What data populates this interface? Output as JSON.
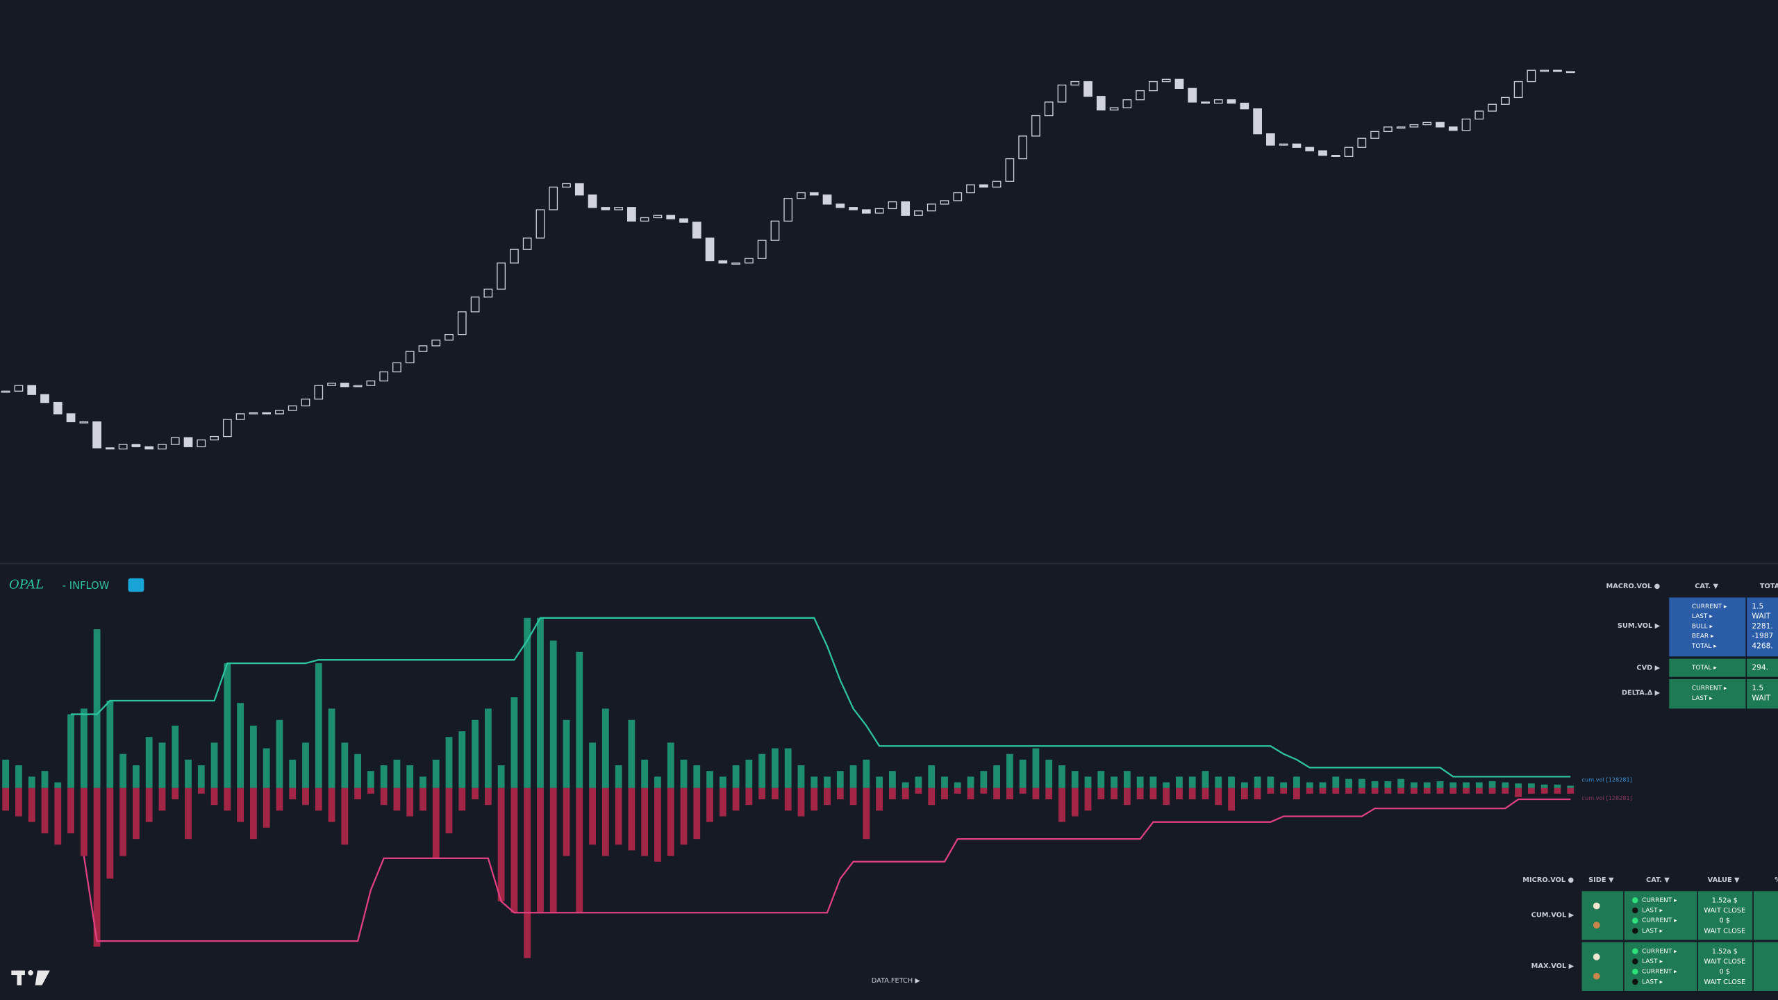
{
  "price_chart": {
    "type": "candlestick",
    "ylim": [
      0,
      497
    ],
    "color": "#d1d4dc",
    "close": [
      152,
      157,
      149,
      142,
      132,
      125,
      125,
      102,
      101,
      105,
      103,
      101,
      105,
      111,
      103,
      109,
      112,
      127,
      132,
      133,
      132,
      135,
      139,
      145,
      157,
      159,
      156,
      157,
      161,
      169,
      177,
      187,
      192,
      197,
      202,
      222,
      235,
      242,
      265,
      277,
      287,
      312,
      332,
      335,
      325,
      314,
      312,
      314,
      302,
      305,
      307,
      304,
      301,
      287,
      267,
      265,
      265,
      269,
      285,
      302,
      322,
      327,
      325,
      317,
      314,
      312,
      309,
      313,
      319,
      307,
      311,
      317,
      320,
      327,
      334,
      332,
      337,
      357,
      377,
      395,
      407,
      422,
      425,
      412,
      400,
      402,
      409,
      417,
      425,
      427,
      419,
      407,
      406,
      409,
      406,
      401,
      379,
      369,
      370,
      367,
      364,
      360,
      359,
      367,
      375,
      381,
      385,
      385,
      387,
      389,
      385,
      382,
      392,
      399,
      405,
      411,
      425,
      435,
      435,
      434,
      434
    ]
  },
  "flow_panel": {
    "type": "bar",
    "title": "OPAL",
    "subtitle": "- INFLOW",
    "ylim": [
      -150,
      150
    ],
    "colors": {
      "bull": "#1e9c79",
      "bear": "#b3284a",
      "bull_line": "#2ec4a0",
      "bear_line": "#e0407f"
    },
    "bull_volume": [
      25,
      20,
      10,
      15,
      5,
      65,
      70,
      140,
      77,
      30,
      20,
      45,
      40,
      55,
      25,
      20,
      40,
      110,
      75,
      55,
      35,
      60,
      25,
      40,
      110,
      70,
      40,
      30,
      15,
      20,
      25,
      20,
      10,
      25,
      45,
      50,
      60,
      70,
      20,
      80,
      150,
      150,
      130,
      60,
      120,
      40,
      70,
      20,
      60,
      25,
      10,
      40,
      25,
      20,
      15,
      10,
      20,
      25,
      30,
      35,
      35,
      20,
      10,
      10,
      15,
      20,
      25,
      10,
      15,
      5,
      10,
      20,
      10,
      5,
      10,
      15,
      20,
      30,
      25,
      35,
      25,
      20,
      15,
      10,
      15,
      10,
      15,
      10,
      10,
      5,
      10,
      10,
      15,
      10,
      10,
      5,
      10,
      10,
      5,
      10,
      5,
      5,
      10,
      8,
      8,
      6,
      6,
      8,
      5,
      5,
      6,
      5,
      5,
      5,
      6,
      5,
      4,
      4,
      3,
      3,
      2
    ],
    "bear_volume": [
      -20,
      -25,
      -30,
      -40,
      -50,
      -40,
      -60,
      -140,
      -80,
      -60,
      -45,
      -30,
      -20,
      -10,
      -45,
      -5,
      -15,
      -20,
      -30,
      -45,
      -35,
      -20,
      -10,
      -15,
      -20,
      -30,
      -50,
      -10,
      -5,
      -15,
      -20,
      -25,
      -20,
      -62,
      -40,
      -20,
      -10,
      -15,
      -100,
      -110,
      -150,
      -110,
      -110,
      -60,
      -110,
      -50,
      -60,
      -50,
      -55,
      -60,
      -65,
      -60,
      -50,
      -45,
      -30,
      -25,
      -20,
      -15,
      -10,
      -10,
      -20,
      -25,
      -20,
      -15,
      -10,
      -15,
      -45,
      -20,
      -10,
      -10,
      -5,
      -15,
      -10,
      -5,
      -10,
      -5,
      -10,
      -10,
      -5,
      -10,
      -10,
      -30,
      -25,
      -20,
      -10,
      -10,
      -15,
      -10,
      -10,
      -15,
      -10,
      -10,
      -10,
      -15,
      -20,
      -10,
      -10,
      -5,
      -5,
      -10,
      -5,
      -5,
      -5,
      -5,
      -5,
      -5,
      -5,
      -5,
      -5,
      -5,
      -5,
      -5,
      -5,
      -5,
      -5,
      -5,
      -8,
      -5,
      -5,
      -5,
      -5
    ],
    "bull_max": [
      null,
      null,
      null,
      null,
      null,
      65,
      65,
      65,
      77,
      77,
      77,
      77,
      77,
      77,
      77,
      77,
      77,
      110,
      110,
      110,
      110,
      110,
      110,
      110,
      113,
      113,
      113,
      113,
      113,
      113,
      113,
      113,
      113,
      113,
      113,
      113,
      113,
      113,
      113,
      113,
      130,
      150,
      150,
      150,
      150,
      150,
      150,
      150,
      150,
      150,
      150,
      150,
      150,
      150,
      150,
      150,
      150,
      150,
      150,
      150,
      150,
      150,
      150,
      125,
      95,
      70,
      55,
      37,
      37,
      37,
      37,
      37,
      37,
      37,
      37,
      37,
      37,
      37,
      37,
      37,
      37,
      37,
      37,
      37,
      37,
      37,
      37,
      37,
      37,
      37,
      37,
      37,
      37,
      37,
      37,
      37,
      37,
      37,
      30,
      25,
      18,
      18,
      18,
      18,
      18,
      18,
      18,
      18,
      18,
      18,
      18,
      10,
      10,
      10,
      10,
      10,
      10,
      10,
      10,
      10,
      10
    ],
    "bear_max": [
      null,
      null,
      null,
      null,
      null,
      null,
      -60,
      -135,
      -135,
      -135,
      -135,
      -135,
      -135,
      -135,
      -135,
      -135,
      -135,
      -135,
      -135,
      -135,
      -135,
      -135,
      -135,
      -135,
      -135,
      -135,
      -135,
      -135,
      -90,
      -62,
      -62,
      -62,
      -62,
      -62,
      -62,
      -62,
      -62,
      -62,
      -100,
      -110,
      -110,
      -110,
      -110,
      -110,
      -110,
      -110,
      -110,
      -110,
      -110,
      -110,
      -110,
      -110,
      -110,
      -110,
      -110,
      -110,
      -110,
      -110,
      -110,
      -110,
      -110,
      -110,
      -110,
      -110,
      -80,
      -65,
      -65,
      -65,
      -65,
      -65,
      -65,
      -65,
      -65,
      -45,
      -45,
      -45,
      -45,
      -45,
      -45,
      -45,
      -45,
      -45,
      -45,
      -45,
      -45,
      -45,
      -45,
      -45,
      -30,
      -30,
      -30,
      -30,
      -30,
      -30,
      -30,
      -30,
      -30,
      -30,
      -25,
      -25,
      -25,
      -25,
      -25,
      -25,
      -25,
      -18,
      -18,
      -18,
      -18,
      -18,
      -18,
      -18,
      -18,
      -18,
      -18,
      -18,
      -10,
      -10,
      -10,
      -10,
      -10
    ],
    "bull_label": "cum.vol [128281]",
    "bear_label": "cum.vol [128281]"
  },
  "macro_table": {
    "headers": [
      "MACRO.VOL ●",
      "CAT. ▼",
      "TOTA"
    ],
    "rows": [
      {
        "label": "SUM.VOL ▶",
        "cats": [
          "CURRENT ▸",
          "LAST ▸",
          "BULL ▸",
          "BEAR ▸",
          "TOTAL ▸"
        ],
        "values": [
          "1.5",
          "WAIT",
          "2281.",
          "-1987",
          "4268."
        ]
      },
      {
        "label": "CVD ▶",
        "cats": [
          "TOTAL ▸"
        ],
        "values": [
          "294."
        ]
      },
      {
        "label": "DELTA.Δ ▶",
        "cats": [
          "CURRENT ▸",
          "LAST ▸"
        ],
        "values": [
          "1.5",
          "WAIT"
        ]
      }
    ]
  },
  "micro_table": {
    "headers": [
      "MICRO.VOL ●",
      "SIDE ▼",
      "CAT. ▼",
      "VALUE ▼",
      "%"
    ],
    "rows": [
      {
        "label": "CUM.VOL ▶",
        "cats": [
          "CURRENT ▸",
          "LAST ▸",
          "CURRENT ▸",
          "LAST ▸"
        ],
        "values": [
          "1.52a $",
          "WAIT CLOSE",
          "0 $",
          "WAIT CLOSE"
        ]
      },
      {
        "label": "MAX.VOL ▶",
        "cats": [
          "CURRENT ▸",
          "LAST ▸",
          "CURRENT ▸",
          "LAST ▸"
        ],
        "values": [
          "1.52a $",
          "WAIT CLOSE",
          "0 $",
          "WAIT CLOSE"
        ]
      }
    ]
  },
  "footer": {
    "fetch": "DATA.FETCH ▶"
  }
}
